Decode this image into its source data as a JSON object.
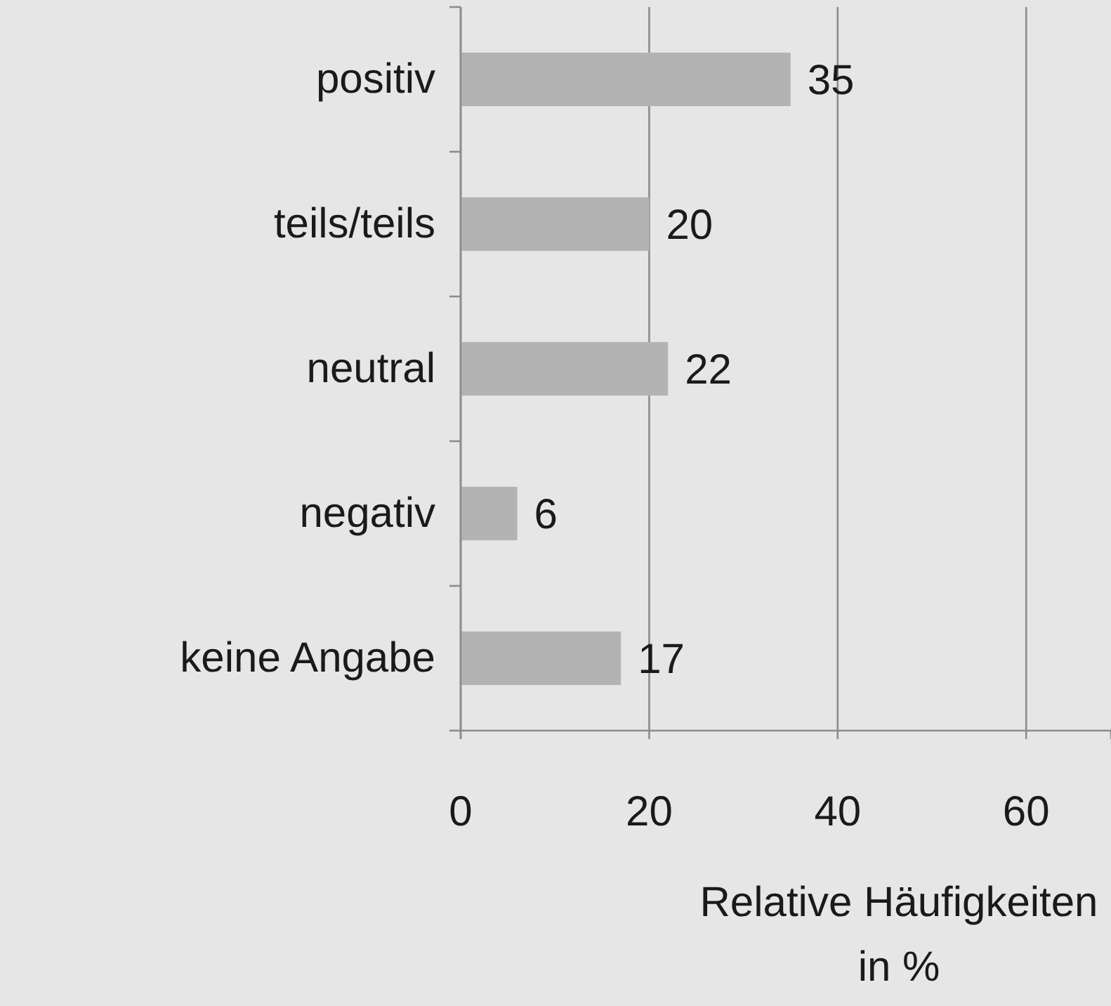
{
  "chart_data": {
    "type": "bar",
    "orientation": "horizontal",
    "categories": [
      "positiv",
      "teils/teils",
      "neutral",
      "negativ",
      "keine Angabe"
    ],
    "values": [
      35,
      20,
      22,
      6,
      17
    ],
    "color": "#b3b3b3",
    "xlim": [
      0,
      69
    ],
    "xticks": [
      0,
      20,
      40,
      60
    ],
    "grid": "x",
    "data_labels": true,
    "xlabel": "Relative Häufigkeiten in %"
  }
}
